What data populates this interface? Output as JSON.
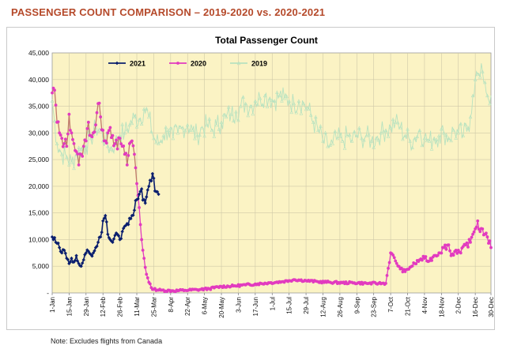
{
  "page": {
    "title": "PASSENGER COUNT COMPARISON – 2019-2020 vs. 2020-2021",
    "footnote": "Note: Excludes flights from Canada"
  },
  "colors": {
    "title": "#b5492a",
    "plot_bg": "#fbf3c4",
    "grid": "#cfc9a8",
    "series_2021": "#0b1f6e",
    "series_2020": "#e23bbf",
    "series_2019": "#b7e2c0",
    "series_2020_early": "#c07a6a"
  },
  "chart_data": {
    "type": "line",
    "title": "Total Passenger Count",
    "xlabel": "",
    "ylabel": "",
    "ylim": [
      0,
      45000
    ],
    "yticks": [
      0,
      5000,
      10000,
      15000,
      20000,
      25000,
      30000,
      35000,
      40000,
      45000
    ],
    "ytick_labels": [
      "-",
      "5,000",
      "10,000",
      "15,000",
      "20,000",
      "25,000",
      "30,000",
      "35,000",
      "40,000",
      "45,000"
    ],
    "xlim": [
      0,
      363
    ],
    "xticks": [
      0,
      14,
      28,
      42,
      56,
      70,
      84,
      98,
      112,
      126,
      140,
      154,
      168,
      182,
      196,
      210,
      224,
      238,
      252,
      266,
      280,
      294,
      308,
      322,
      336,
      350,
      363
    ],
    "xtick_labels": [
      "1-Jan",
      "15-Jan",
      "29-Jan",
      "12-Feb",
      "26-Feb",
      "11-Mar",
      "25-Mar",
      "8-Apr",
      "22-Apr",
      "6-May",
      "20-May",
      "3-Jun",
      "17-Jun",
      "1-Jul",
      "15-Jul",
      "29-Jul",
      "12-Aug",
      "26-Aug",
      "9-Sep",
      "23-Sep",
      "7-Oct",
      "21-Oct",
      "4-Nov",
      "18-Nov",
      "2-Dec",
      "16-Dec",
      "30-Dec"
    ],
    "grid": true,
    "legend_position": "top",
    "series": [
      {
        "name": "2021",
        "marker": "diamond",
        "points": [
          [
            0,
            10500
          ],
          [
            3,
            9500
          ],
          [
            6,
            8500
          ],
          [
            8,
            7500
          ],
          [
            10,
            8000
          ],
          [
            12,
            6500
          ],
          [
            14,
            5500
          ],
          [
            16,
            6500
          ],
          [
            18,
            5800
          ],
          [
            20,
            7000
          ],
          [
            22,
            5500
          ],
          [
            24,
            5000
          ],
          [
            26,
            6200
          ],
          [
            28,
            7500
          ],
          [
            30,
            7800
          ],
          [
            32,
            7200
          ],
          [
            34,
            7500
          ],
          [
            36,
            8500
          ],
          [
            38,
            9500
          ],
          [
            40,
            10500
          ],
          [
            42,
            13500
          ],
          [
            44,
            14500
          ],
          [
            46,
            11000
          ],
          [
            48,
            10000
          ],
          [
            50,
            9500
          ],
          [
            52,
            10800
          ],
          [
            54,
            11000
          ],
          [
            56,
            10000
          ],
          [
            58,
            11500
          ],
          [
            60,
            12500
          ],
          [
            62,
            13000
          ],
          [
            64,
            14000
          ],
          [
            66,
            14500
          ],
          [
            68,
            15500
          ],
          [
            70,
            17500
          ],
          [
            72,
            18500
          ],
          [
            74,
            19500
          ],
          [
            76,
            17500
          ],
          [
            78,
            18000
          ],
          [
            80,
            20000
          ],
          [
            82,
            21000
          ],
          [
            84,
            21500
          ],
          [
            86,
            19000
          ],
          [
            88,
            18500
          ]
        ]
      },
      {
        "name": "2020",
        "marker": "circle",
        "points": [
          [
            0,
            37500
          ],
          [
            2,
            38000
          ],
          [
            4,
            32000
          ],
          [
            6,
            30000
          ],
          [
            8,
            29000
          ],
          [
            10,
            28000
          ],
          [
            12,
            27500
          ],
          [
            14,
            33500
          ],
          [
            16,
            30000
          ],
          [
            18,
            28000
          ],
          [
            20,
            26500
          ],
          [
            22,
            24000
          ],
          [
            24,
            26000
          ],
          [
            26,
            27500
          ],
          [
            28,
            28500
          ],
          [
            30,
            32000
          ],
          [
            32,
            29500
          ],
          [
            34,
            30000
          ],
          [
            36,
            31500
          ],
          [
            38,
            35500
          ],
          [
            40,
            33000
          ],
          [
            42,
            30500
          ],
          [
            44,
            28500
          ],
          [
            46,
            30000
          ],
          [
            48,
            31000
          ],
          [
            50,
            29500
          ],
          [
            52,
            28000
          ],
          [
            54,
            27000
          ],
          [
            56,
            29000
          ],
          [
            58,
            27500
          ],
          [
            60,
            26000
          ],
          [
            62,
            24000
          ],
          [
            64,
            28000
          ],
          [
            66,
            28500
          ],
          [
            68,
            26000
          ],
          [
            70,
            20500
          ],
          [
            72,
            16000
          ],
          [
            74,
            10000
          ],
          [
            76,
            6500
          ],
          [
            78,
            3500
          ],
          [
            80,
            2000
          ],
          [
            82,
            1000
          ],
          [
            84,
            700
          ],
          [
            90,
            500
          ],
          [
            100,
            400
          ],
          [
            110,
            500
          ],
          [
            120,
            600
          ],
          [
            130,
            800
          ],
          [
            140,
            1200
          ],
          [
            150,
            1300
          ],
          [
            160,
            1500
          ],
          [
            170,
            1700
          ],
          [
            180,
            1900
          ],
          [
            190,
            2100
          ],
          [
            196,
            2300
          ],
          [
            200,
            2500
          ],
          [
            210,
            2300
          ],
          [
            220,
            2100
          ],
          [
            230,
            2000
          ],
          [
            240,
            1900
          ],
          [
            250,
            1900
          ],
          [
            260,
            1800
          ],
          [
            270,
            1800
          ],
          [
            276,
            1800
          ],
          [
            280,
            7500
          ],
          [
            284,
            6000
          ],
          [
            288,
            4500
          ],
          [
            292,
            4000
          ],
          [
            296,
            4800
          ],
          [
            300,
            5500
          ],
          [
            304,
            6200
          ],
          [
            308,
            6500
          ],
          [
            312,
            6000
          ],
          [
            316,
            7000
          ],
          [
            320,
            7500
          ],
          [
            324,
            8500
          ],
          [
            328,
            9000
          ],
          [
            330,
            7000
          ],
          [
            334,
            8000
          ],
          [
            338,
            7500
          ],
          [
            342,
            9000
          ],
          [
            346,
            9500
          ],
          [
            348,
            11000
          ],
          [
            350,
            12000
          ],
          [
            352,
            13500
          ],
          [
            354,
            11500
          ],
          [
            356,
            12000
          ],
          [
            358,
            11000
          ],
          [
            360,
            10500
          ],
          [
            363,
            8500
          ]
        ]
      },
      {
        "name": "2019",
        "marker": "triangle",
        "points": [
          [
            0,
            36000
          ],
          [
            4,
            28000
          ],
          [
            8,
            26000
          ],
          [
            12,
            25500
          ],
          [
            16,
            24500
          ],
          [
            20,
            26000
          ],
          [
            24,
            27000
          ],
          [
            28,
            27500
          ],
          [
            32,
            29000
          ],
          [
            36,
            31000
          ],
          [
            40,
            30500
          ],
          [
            44,
            28500
          ],
          [
            48,
            27000
          ],
          [
            52,
            28000
          ],
          [
            56,
            29500
          ],
          [
            60,
            30000
          ],
          [
            64,
            31500
          ],
          [
            68,
            33000
          ],
          [
            72,
            32500
          ],
          [
            76,
            34500
          ],
          [
            80,
            33000
          ],
          [
            84,
            29000
          ],
          [
            88,
            28000
          ],
          [
            92,
            29500
          ],
          [
            96,
            30500
          ],
          [
            100,
            29000
          ],
          [
            104,
            30000
          ],
          [
            108,
            31000
          ],
          [
            112,
            31500
          ],
          [
            116,
            30500
          ],
          [
            120,
            29500
          ],
          [
            124,
            31000
          ],
          [
            128,
            31500
          ],
          [
            132,
            30500
          ],
          [
            136,
            31500
          ],
          [
            140,
            32000
          ],
          [
            144,
            33000
          ],
          [
            148,
            33500
          ],
          [
            152,
            34000
          ],
          [
            156,
            35000
          ],
          [
            160,
            35500
          ],
          [
            164,
            35000
          ],
          [
            168,
            36000
          ],
          [
            172,
            36500
          ],
          [
            176,
            37000
          ],
          [
            180,
            36500
          ],
          [
            184,
            36000
          ],
          [
            188,
            37000
          ],
          [
            192,
            36500
          ],
          [
            196,
            36000
          ],
          [
            200,
            35500
          ],
          [
            204,
            36000
          ],
          [
            208,
            35500
          ],
          [
            212,
            34500
          ],
          [
            216,
            32000
          ],
          [
            220,
            30500
          ],
          [
            224,
            28500
          ],
          [
            228,
            27500
          ],
          [
            232,
            28000
          ],
          [
            236,
            29000
          ],
          [
            240,
            28500
          ],
          [
            244,
            29500
          ],
          [
            248,
            28500
          ],
          [
            252,
            29500
          ],
          [
            256,
            29000
          ],
          [
            260,
            29500
          ],
          [
            264,
            28500
          ],
          [
            268,
            29000
          ],
          [
            272,
            30000
          ],
          [
            276,
            30500
          ],
          [
            280,
            31000
          ],
          [
            284,
            32000
          ],
          [
            288,
            31000
          ],
          [
            292,
            29500
          ],
          [
            296,
            28500
          ],
          [
            300,
            29000
          ],
          [
            304,
            30500
          ],
          [
            308,
            29000
          ],
          [
            312,
            28500
          ],
          [
            316,
            29000
          ],
          [
            320,
            29500
          ],
          [
            324,
            30000
          ],
          [
            328,
            29000
          ],
          [
            332,
            30500
          ],
          [
            336,
            30000
          ],
          [
            340,
            29500
          ],
          [
            344,
            31000
          ],
          [
            346,
            33000
          ],
          [
            348,
            37000
          ],
          [
            350,
            40000
          ],
          [
            352,
            41000
          ],
          [
            354,
            40500
          ],
          [
            356,
            41500
          ],
          [
            358,
            39500
          ],
          [
            360,
            37000
          ],
          [
            363,
            37000
          ]
        ]
      }
    ]
  }
}
